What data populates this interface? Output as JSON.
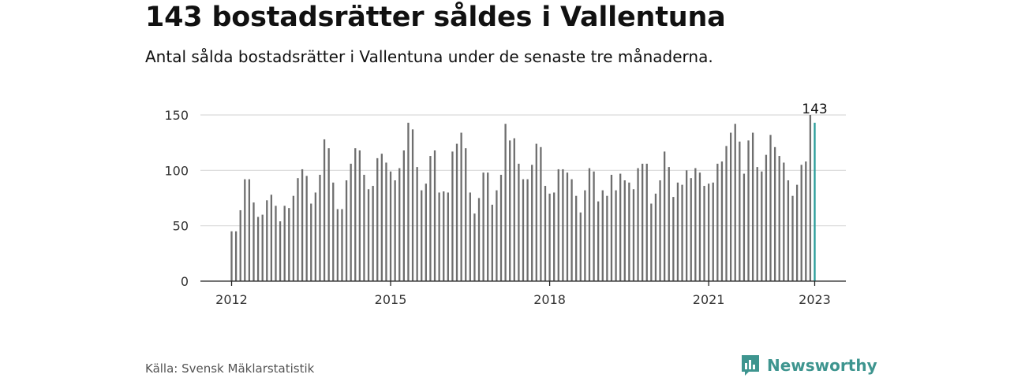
{
  "header": {
    "title": "143 bostadsrätter såldes i Vallentuna",
    "subtitle": "Antal sålda bostadsrätter i Vallentuna under de senaste tre månaderna."
  },
  "footer": {
    "source": "Källa: Svensk Mäklarstatistik",
    "brand": "Newsworthy",
    "brand_icon": "bar-chart-speech-bubble-icon",
    "brand_color": "#3e958f"
  },
  "colors": {
    "bar": "#6e6e6e",
    "highlight": "#2a9d9a",
    "grid": "#d9d9d9",
    "axis": "#222222"
  },
  "chart_data": {
    "type": "bar",
    "x_start": "2012-01",
    "x_end": "2023-01",
    "x_tick_labels": [
      "2012",
      "2015",
      "2018",
      "2021",
      "2023"
    ],
    "y_ticks": [
      0,
      50,
      100,
      150
    ],
    "ylim": [
      0,
      150
    ],
    "grid": true,
    "highlight_label": "143",
    "values": [
      45,
      45,
      64,
      92,
      92,
      71,
      58,
      60,
      73,
      78,
      68,
      54,
      68,
      66,
      77,
      93,
      101,
      95,
      70,
      80,
      96,
      128,
      120,
      89,
      65,
      65,
      91,
      106,
      120,
      118,
      96,
      83,
      86,
      111,
      115,
      107,
      99,
      91,
      102,
      118,
      143,
      137,
      103,
      82,
      88,
      113,
      118,
      80,
      81,
      80,
      117,
      124,
      134,
      120,
      80,
      61,
      75,
      98,
      98,
      69,
      82,
      96,
      142,
      127,
      129,
      106,
      92,
      92,
      105,
      124,
      121,
      86,
      79,
      80,
      101,
      101,
      98,
      92,
      77,
      62,
      82,
      102,
      99,
      72,
      82,
      77,
      96,
      82,
      97,
      91,
      89,
      83,
      102,
      106,
      106,
      70,
      79,
      91,
      117,
      103,
      76,
      89,
      87,
      100,
      93,
      102,
      98,
      86,
      88,
      89,
      106,
      108,
      122,
      134,
      142,
      126,
      97,
      127,
      134,
      103,
      99,
      114,
      132,
      121,
      113,
      107,
      91,
      77,
      87,
      105,
      108,
      150,
      143
    ]
  }
}
